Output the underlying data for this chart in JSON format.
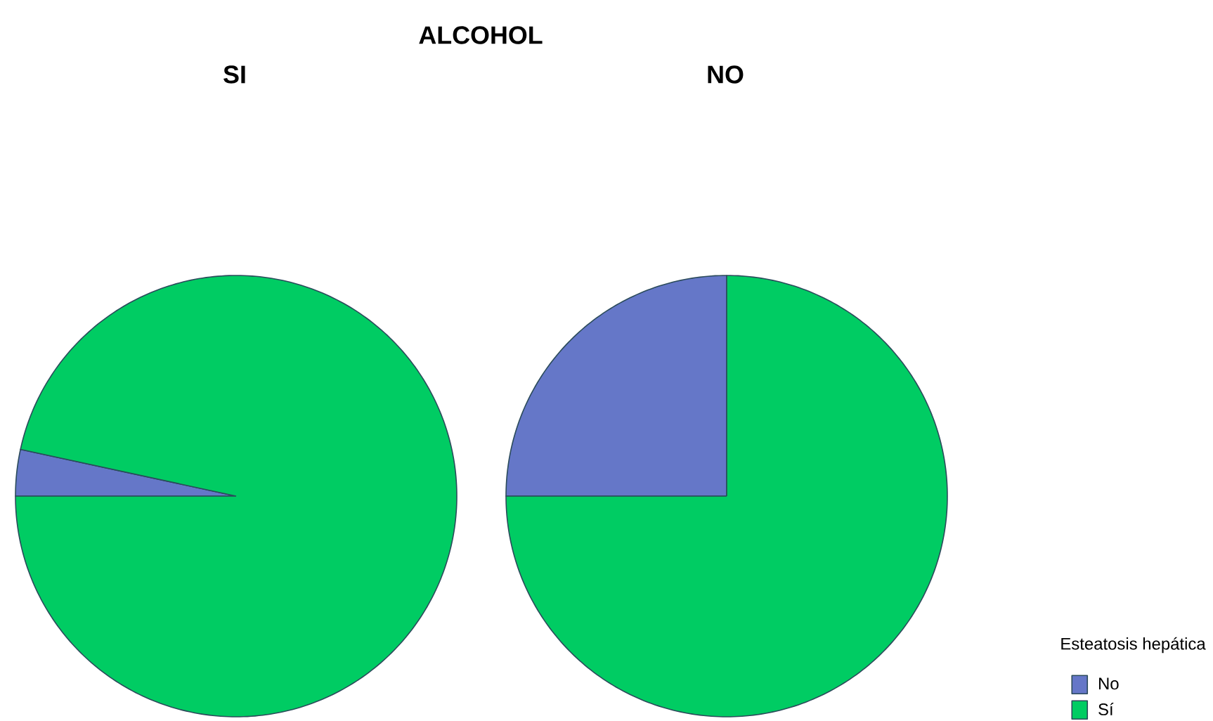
{
  "chart_data": [
    {
      "type": "pie",
      "title": "ALCOHOL",
      "subtitle": "SI",
      "categories": [
        null,
        null
      ],
      "values": [
        3.4,
        96.6
      ],
      "colors": [
        "#6577c8",
        "#00cc63"
      ]
    },
    {
      "type": "pie",
      "subtitle": "NO",
      "categories": [
        "No",
        "Sí"
      ],
      "values": [
        25,
        75
      ],
      "colors": [
        "#6577c8",
        "#00cc63"
      ],
      "legend": "bottom right",
      "legend_title": "Esteatosis hepática"
    }
  ]
}
